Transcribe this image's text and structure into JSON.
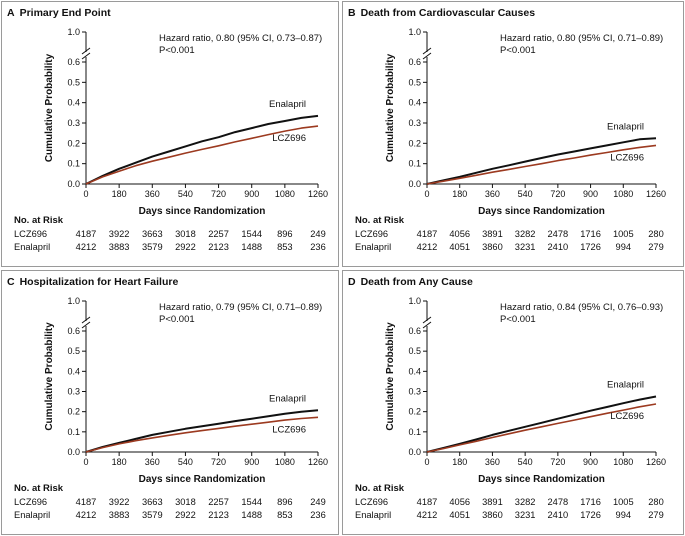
{
  "chart_data": [
    {
      "type": "line",
      "letter": "A",
      "title": "Primary End Point",
      "xlabel": "Days since Randomization",
      "ylabel": "Cumulative Probability",
      "x_ticks": [
        "0",
        "180",
        "360",
        "540",
        "720",
        "900",
        "1080",
        "1260"
      ],
      "y_ticks": [
        "0.0",
        "0.1",
        "0.2",
        "0.3",
        "0.4",
        "0.5",
        "0.6"
      ],
      "y_top_tick": "1.0",
      "xlim": [
        0,
        1260
      ],
      "ylim": [
        0,
        0.6
      ],
      "y_axis_break": true,
      "hazard_text": "Hazard ratio, 0.80 (95% CI, 0.73–0.87)",
      "p_text": "P<0.001",
      "series": [
        {
          "name": "Enalapril",
          "color": "#111111",
          "x": [
            0,
            90,
            180,
            270,
            360,
            450,
            540,
            630,
            720,
            810,
            900,
            990,
            1080,
            1170,
            1260
          ],
          "y": [
            0,
            0.04,
            0.075,
            0.105,
            0.135,
            0.16,
            0.185,
            0.21,
            0.23,
            0.255,
            0.275,
            0.295,
            0.31,
            0.325,
            0.335
          ]
        },
        {
          "name": "LCZ696",
          "color": "#9c3a20",
          "x": [
            0,
            90,
            180,
            270,
            360,
            450,
            540,
            630,
            720,
            810,
            900,
            990,
            1080,
            1170,
            1260
          ],
          "y": [
            0,
            0.035,
            0.063,
            0.09,
            0.112,
            0.132,
            0.152,
            0.17,
            0.188,
            0.207,
            0.225,
            0.243,
            0.26,
            0.275,
            0.285
          ]
        }
      ],
      "risk_title": "No. at Risk",
      "risk_table": [
        {
          "name": "LCZ696",
          "values": [
            "4187",
            "3922",
            "3663",
            "3018",
            "2257",
            "1544",
            "896",
            "249"
          ]
        },
        {
          "name": "Enalapril",
          "values": [
            "4212",
            "3883",
            "3579",
            "2922",
            "2123",
            "1488",
            "853",
            "236"
          ]
        }
      ]
    },
    {
      "type": "line",
      "letter": "B",
      "title": "Death from Cardiovascular Causes",
      "xlabel": "Days since Randomization",
      "ylabel": "Cumulative Probability",
      "x_ticks": [
        "0",
        "180",
        "360",
        "540",
        "720",
        "900",
        "1080",
        "1260"
      ],
      "y_ticks": [
        "0.0",
        "0.1",
        "0.2",
        "0.3",
        "0.4",
        "0.5",
        "0.6"
      ],
      "y_top_tick": "1.0",
      "xlim": [
        0,
        1260
      ],
      "ylim": [
        0,
        0.6
      ],
      "y_axis_break": true,
      "hazard_text": "Hazard ratio, 0.80 (95% CI, 0.71–0.89)",
      "p_text": "P<0.001",
      "series": [
        {
          "name": "Enalapril",
          "color": "#111111",
          "x": [
            0,
            90,
            180,
            270,
            360,
            450,
            540,
            630,
            720,
            810,
            900,
            990,
            1080,
            1170,
            1260
          ],
          "y": [
            0,
            0.018,
            0.035,
            0.055,
            0.075,
            0.092,
            0.11,
            0.128,
            0.145,
            0.16,
            0.175,
            0.19,
            0.205,
            0.22,
            0.225
          ]
        },
        {
          "name": "LCZ696",
          "color": "#9c3a20",
          "x": [
            0,
            90,
            180,
            270,
            360,
            450,
            540,
            630,
            720,
            810,
            900,
            990,
            1080,
            1170,
            1260
          ],
          "y": [
            0,
            0.014,
            0.028,
            0.043,
            0.058,
            0.072,
            0.086,
            0.1,
            0.115,
            0.128,
            0.142,
            0.155,
            0.168,
            0.18,
            0.19
          ]
        }
      ],
      "risk_title": "No. at Risk",
      "risk_table": [
        {
          "name": "LCZ696",
          "values": [
            "4187",
            "4056",
            "3891",
            "3282",
            "2478",
            "1716",
            "1005",
            "280"
          ]
        },
        {
          "name": "Enalapril",
          "values": [
            "4212",
            "4051",
            "3860",
            "3231",
            "2410",
            "1726",
            "994",
            "279"
          ]
        }
      ]
    },
    {
      "type": "line",
      "letter": "C",
      "title": "Hospitalization for Heart Failure",
      "xlabel": "Days since Randomization",
      "ylabel": "Cumulative Probability",
      "x_ticks": [
        "0",
        "180",
        "360",
        "540",
        "720",
        "900",
        "1080",
        "1260"
      ],
      "y_ticks": [
        "0.0",
        "0.1",
        "0.2",
        "0.3",
        "0.4",
        "0.5",
        "0.6"
      ],
      "y_top_tick": "1.0",
      "xlim": [
        0,
        1260
      ],
      "ylim": [
        0,
        0.6
      ],
      "y_axis_break": true,
      "hazard_text": "Hazard ratio, 0.79 (95% CI, 0.71–0.89)",
      "p_text": "P<0.001",
      "series": [
        {
          "name": "Enalapril",
          "color": "#111111",
          "x": [
            0,
            90,
            180,
            270,
            360,
            450,
            540,
            630,
            720,
            810,
            900,
            990,
            1080,
            1170,
            1260
          ],
          "y": [
            0,
            0.025,
            0.045,
            0.065,
            0.085,
            0.1,
            0.115,
            0.128,
            0.14,
            0.153,
            0.165,
            0.177,
            0.19,
            0.2,
            0.207
          ]
        },
        {
          "name": "LCZ696",
          "color": "#9c3a20",
          "x": [
            0,
            90,
            180,
            270,
            360,
            450,
            540,
            630,
            720,
            810,
            900,
            990,
            1080,
            1170,
            1260
          ],
          "y": [
            0,
            0.022,
            0.04,
            0.056,
            0.07,
            0.083,
            0.095,
            0.106,
            0.117,
            0.128,
            0.138,
            0.148,
            0.158,
            0.166,
            0.172
          ]
        }
      ],
      "risk_title": "No. at Risk",
      "risk_table": [
        {
          "name": "LCZ696",
          "values": [
            "4187",
            "3922",
            "3663",
            "3018",
            "2257",
            "1544",
            "896",
            "249"
          ]
        },
        {
          "name": "Enalapril",
          "values": [
            "4212",
            "3883",
            "3579",
            "2922",
            "2123",
            "1488",
            "853",
            "236"
          ]
        }
      ]
    },
    {
      "type": "line",
      "letter": "D",
      "title": "Death from Any Cause",
      "xlabel": "Days since Randomization",
      "ylabel": "Cumulative Probability",
      "x_ticks": [
        "0",
        "180",
        "360",
        "540",
        "720",
        "900",
        "1080",
        "1260"
      ],
      "y_ticks": [
        "0.0",
        "0.1",
        "0.2",
        "0.3",
        "0.4",
        "0.5",
        "0.6"
      ],
      "y_top_tick": "1.0",
      "xlim": [
        0,
        1260
      ],
      "ylim": [
        0,
        0.6
      ],
      "y_axis_break": true,
      "hazard_text": "Hazard ratio, 0.84 (95% CI, 0.76–0.93)",
      "p_text": "P<0.001",
      "series": [
        {
          "name": "Enalapril",
          "color": "#111111",
          "x": [
            0,
            90,
            180,
            270,
            360,
            450,
            540,
            630,
            720,
            810,
            900,
            990,
            1080,
            1170,
            1260
          ],
          "y": [
            0,
            0.02,
            0.04,
            0.062,
            0.085,
            0.105,
            0.125,
            0.145,
            0.165,
            0.185,
            0.205,
            0.223,
            0.242,
            0.26,
            0.275
          ]
        },
        {
          "name": "LCZ696",
          "color": "#9c3a20",
          "x": [
            0,
            90,
            180,
            270,
            360,
            450,
            540,
            630,
            720,
            810,
            900,
            990,
            1080,
            1170,
            1260
          ],
          "y": [
            0,
            0.017,
            0.035,
            0.053,
            0.072,
            0.09,
            0.108,
            0.125,
            0.142,
            0.158,
            0.175,
            0.192,
            0.208,
            0.224,
            0.238
          ]
        }
      ],
      "risk_title": "No. at Risk",
      "risk_table": [
        {
          "name": "LCZ696",
          "values": [
            "4187",
            "4056",
            "3891",
            "3282",
            "2478",
            "1716",
            "1005",
            "280"
          ]
        },
        {
          "name": "Enalapril",
          "values": [
            "4212",
            "4051",
            "3860",
            "3231",
            "2410",
            "1726",
            "994",
            "279"
          ]
        }
      ]
    }
  ]
}
